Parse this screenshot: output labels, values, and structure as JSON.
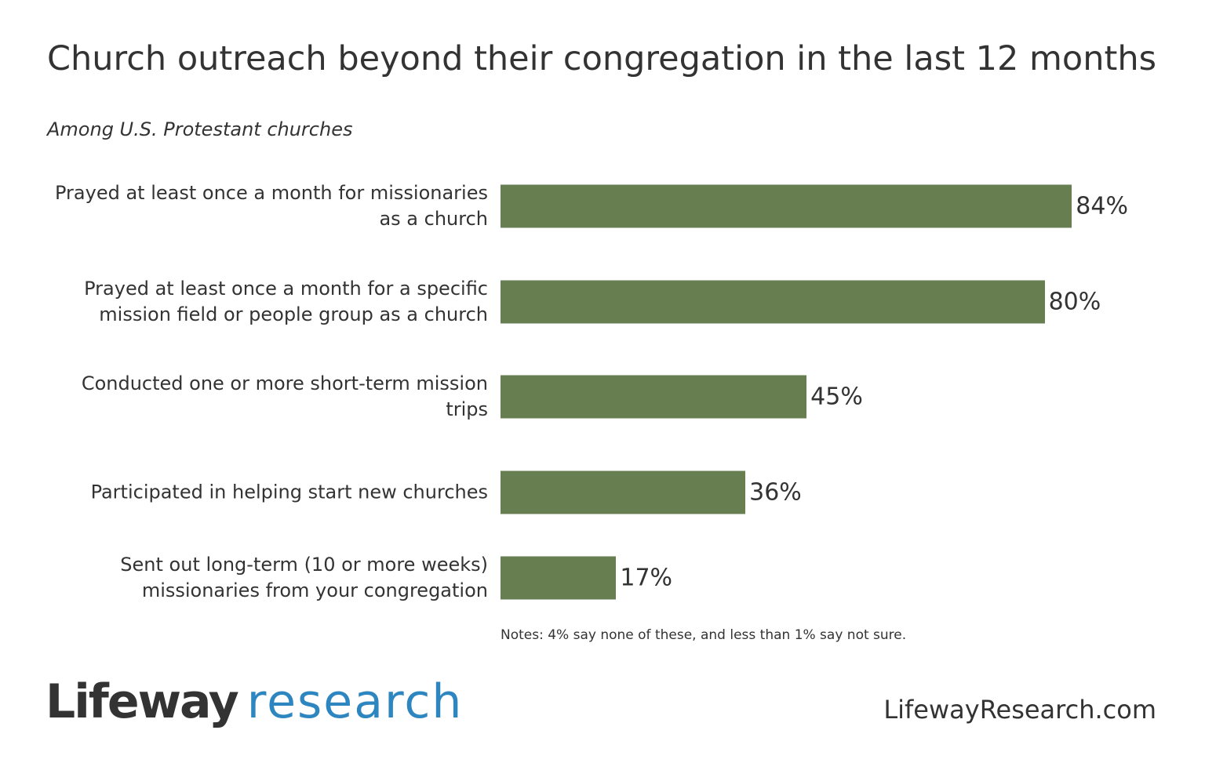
{
  "chart_data": {
    "type": "hbar",
    "title": "Church outreach beyond their congregation in the last 12 months",
    "subtitle": "Among U.S. Protestant churches",
    "categories": [
      "Prayed at least once a month for missionaries as a church",
      "Prayed at least once a month for a specific mission field or people group as a church",
      "Conducted one or more short-term mission trips",
      "Participated in helping start new churches",
      "Sent out long-term (10 or more weeks) missionaries from your congregation"
    ],
    "values": [
      84,
      80,
      45,
      36,
      17
    ],
    "value_labels": [
      "84%",
      "80%",
      "45%",
      "36%",
      "17%"
    ],
    "color": "#667e50",
    "xlim": [
      0,
      100
    ],
    "note": "Notes: 4% say none of these, and less than 1% say not sure."
  },
  "footer": {
    "logo_main": "Lifeway",
    "logo_sub": "research",
    "website": "LifewayResearch.com"
  }
}
